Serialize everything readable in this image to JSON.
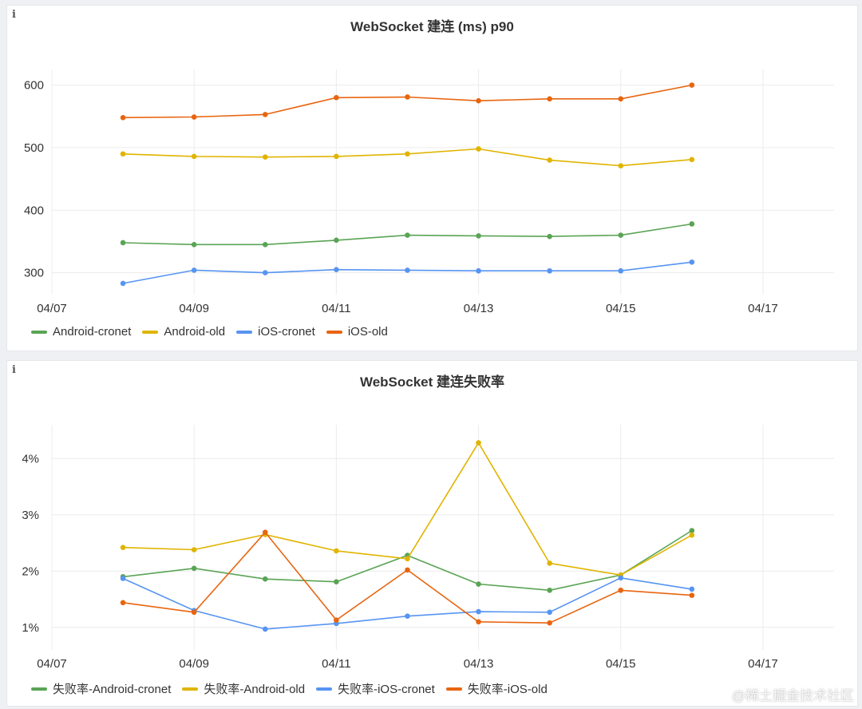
{
  "watermark": "@稀土掘金技术社区",
  "panels": [
    {
      "title": "WebSocket 建连 (ms) p90",
      "chart_data": {
        "type": "line",
        "title": "WebSocket 建连 (ms) p90",
        "x_ticks": [
          "04/07",
          "04/09",
          "04/11",
          "04/13",
          "04/15",
          "04/17"
        ],
        "x": [
          "04/08",
          "04/09",
          "04/10",
          "04/11",
          "04/12",
          "04/13",
          "04/14",
          "04/15",
          "04/16"
        ],
        "y_ticks": [
          300,
          400,
          500,
          600
        ],
        "y_tick_labels": [
          "300",
          "400",
          "500",
          "600"
        ],
        "xlim": [
          "04/07",
          "04/18"
        ],
        "ylim": [
          265,
          625
        ],
        "grid": true,
        "legend_position": "bottom-left",
        "series": [
          {
            "name": "Android-cronet",
            "color": "#5aa454",
            "values": [
              348,
              345,
              345,
              352,
              360,
              359,
              358,
              360,
              378
            ]
          },
          {
            "name": "Android-old",
            "color": "#e0b400",
            "values": [
              490,
              486,
              485,
              486,
              490,
              498,
              480,
              471,
              481
            ]
          },
          {
            "name": "iOS-cronet",
            "color": "#5794f2",
            "values": [
              283,
              304,
              300,
              305,
              304,
              303,
              303,
              303,
              317
            ]
          },
          {
            "name": "iOS-old",
            "color": "#e8650f",
            "values": [
              548,
              549,
              553,
              580,
              581,
              575,
              578,
              578,
              600
            ]
          }
        ]
      }
    },
    {
      "title": "WebSocket 建连失败率",
      "chart_data": {
        "type": "line",
        "title": "WebSocket 建连失败率",
        "x_ticks": [
          "04/07",
          "04/09",
          "04/11",
          "04/13",
          "04/15",
          "04/17"
        ],
        "x": [
          "04/08",
          "04/09",
          "04/10",
          "04/11",
          "04/12",
          "04/13",
          "04/14",
          "04/15",
          "04/16"
        ],
        "y_ticks": [
          1,
          2,
          3,
          4
        ],
        "y_tick_labels": [
          "1%",
          "2%",
          "3%",
          "4%"
        ],
        "xlim": [
          "04/07",
          "04/18"
        ],
        "ylim": [
          0.6,
          4.6
        ],
        "grid": true,
        "legend_position": "bottom-left",
        "series": [
          {
            "name": "失败率-Android-cronet",
            "color": "#5aa454",
            "values": [
              1.9,
              2.05,
              1.86,
              1.81,
              2.28,
              1.77,
              1.66,
              1.93,
              2.72
            ]
          },
          {
            "name": "失败率-Android-old",
            "color": "#e0b400",
            "values": [
              2.42,
              2.38,
              2.65,
              2.36,
              2.22,
              4.28,
              2.14,
              1.93,
              2.64
            ]
          },
          {
            "name": "失败率-iOS-cronet",
            "color": "#5794f2",
            "values": [
              1.87,
              1.3,
              0.97,
              1.07,
              1.2,
              1.28,
              1.27,
              1.88,
              1.68
            ]
          },
          {
            "name": "失败率-iOS-old",
            "color": "#e8650f",
            "values": [
              1.44,
              1.27,
              2.69,
              1.13,
              2.02,
              1.1,
              1.08,
              1.66,
              1.57
            ]
          }
        ]
      }
    }
  ]
}
